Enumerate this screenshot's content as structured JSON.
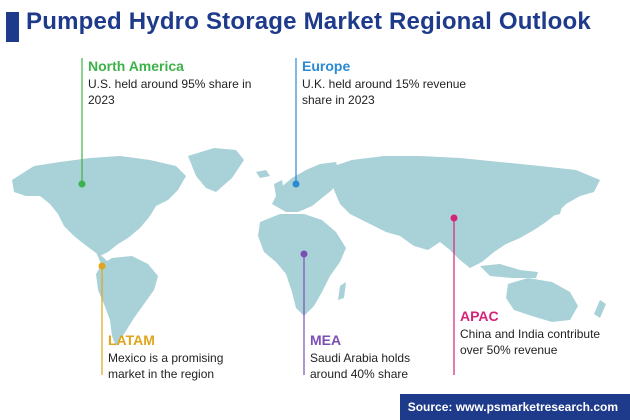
{
  "title": "Pumped Hydro Storage Market Regional Outlook",
  "regions": [
    {
      "id": "north_america",
      "name": "North America",
      "text": "U.S. held around 95% share in 2023",
      "color": "#3db24a"
    },
    {
      "id": "europe",
      "name": "Europe",
      "text": "U.K. held around 15% revenue share in 2023",
      "color": "#2a8ad2"
    },
    {
      "id": "latam",
      "name": "LATAM",
      "text": "Mexico is a promising market in the region",
      "color": "#e0a51b"
    },
    {
      "id": "mea",
      "name": "MEA",
      "text": "Saudi Arabia holds around 40% share",
      "color": "#7b4fb3"
    },
    {
      "id": "apac",
      "name": "APAC",
      "text": "China and India contribute over 50% revenue",
      "color": "#d6237a"
    }
  ],
  "source": "Source: www.psmarketresearch.com",
  "colors": {
    "map": "#a9d1d8",
    "title": "#1e3a8a"
  }
}
